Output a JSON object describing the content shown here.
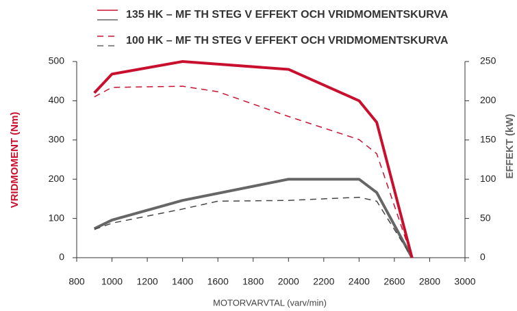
{
  "chart_data": {
    "type": "line",
    "xlabel": "MOTORVARVTAL (varv/min)",
    "ylabel": "VRIDMOMENT (Nm)",
    "y2label": "EFFEKT (kW)",
    "ylabel_color": "#c8102e",
    "y2label_color": "#666666",
    "xlim": [
      800,
      3000
    ],
    "xticks": [
      800,
      1000,
      1200,
      1400,
      1600,
      1800,
      2000,
      2200,
      2400,
      2600,
      2800,
      3000
    ],
    "ylim": [
      0,
      500
    ],
    "yticks": [
      0,
      100,
      200,
      300,
      400,
      500
    ],
    "y2lim": [
      0,
      250
    ],
    "y2ticks": [
      0,
      50,
      100,
      150,
      200,
      250
    ],
    "grid": false,
    "legend": [
      {
        "label": "135 HK – MF TH STEG V EFFEKT OCH VRIDMOMENTSKURVA",
        "dash": false
      },
      {
        "label": "100 HK – MF TH STEG V EFFEKT OCH VRIDMOMENTSKURVA",
        "dash": true
      }
    ],
    "series": [
      {
        "color": "#666666",
        "dash": false,
        "axis": "y2",
        "x": [
          900,
          1000,
          1400,
          2000,
          2400,
          2500,
          2700
        ],
        "values": [
          37,
          48,
          73,
          100,
          100,
          83,
          0
        ]
      },
      {
        "color": "#444444",
        "dash": true,
        "axis": "y2",
        "x": [
          900,
          1000,
          1400,
          1600,
          2000,
          2400,
          2500,
          2700
        ],
        "values": [
          36,
          44,
          62,
          72,
          73,
          77,
          72,
          0
        ]
      },
      {
        "color": "#c8102e",
        "dash": false,
        "axis": "y",
        "x": [
          900,
          1000,
          1400,
          2000,
          2400,
          2500,
          2700
        ],
        "values": [
          420,
          468,
          500,
          480,
          400,
          345,
          0
        ]
      },
      {
        "color": "#c8102e",
        "dash": true,
        "axis": "y",
        "x": [
          900,
          1000,
          1400,
          1600,
          2000,
          2400,
          2500,
          2700
        ],
        "values": [
          410,
          434,
          437,
          423,
          360,
          301,
          265,
          0
        ]
      }
    ]
  }
}
